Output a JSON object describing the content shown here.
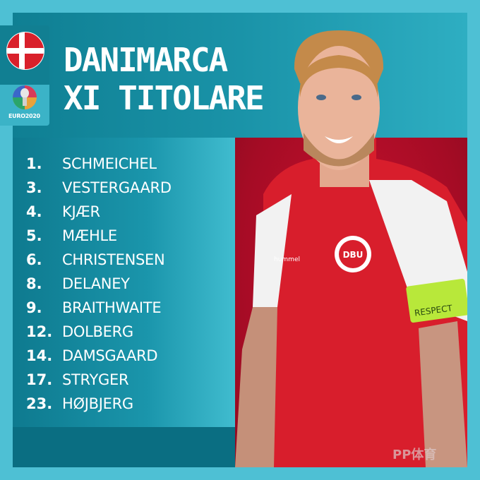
{
  "header": {
    "title_line1": "DANIMARCA",
    "title_line2": "XI TITOLARE"
  },
  "badges": {
    "flag": "denmark-flag-icon",
    "tournament_logo": "EURO2020"
  },
  "lineup": [
    {
      "number": "1.",
      "name": "SCHMEICHEL"
    },
    {
      "number": "3.",
      "name": "VESTERGAARD"
    },
    {
      "number": "4.",
      "name": "KJÆR"
    },
    {
      "number": "5.",
      "name": "MÆHLE"
    },
    {
      "number": "6.",
      "name": "CHRISTENSEN"
    },
    {
      "number": "8.",
      "name": "DELANEY"
    },
    {
      "number": "9.",
      "name": "BRAITHWAITE"
    },
    {
      "number": "12.",
      "name": "DOLBERG"
    },
    {
      "number": "14.",
      "name": "DAMSGAARD"
    },
    {
      "number": "17.",
      "name": "STRYGER"
    },
    {
      "number": "23.",
      "name": "HØJBJERG"
    }
  ],
  "photo": {
    "armband_text": "RESPECT",
    "crest_text": "DBU",
    "brand": "hummel"
  },
  "watermark": "PP体育",
  "colors": {
    "teal": "#1a93a8",
    "outer": "#4ec0d4",
    "red": "#c8102e",
    "armband": "#b8e83a"
  }
}
